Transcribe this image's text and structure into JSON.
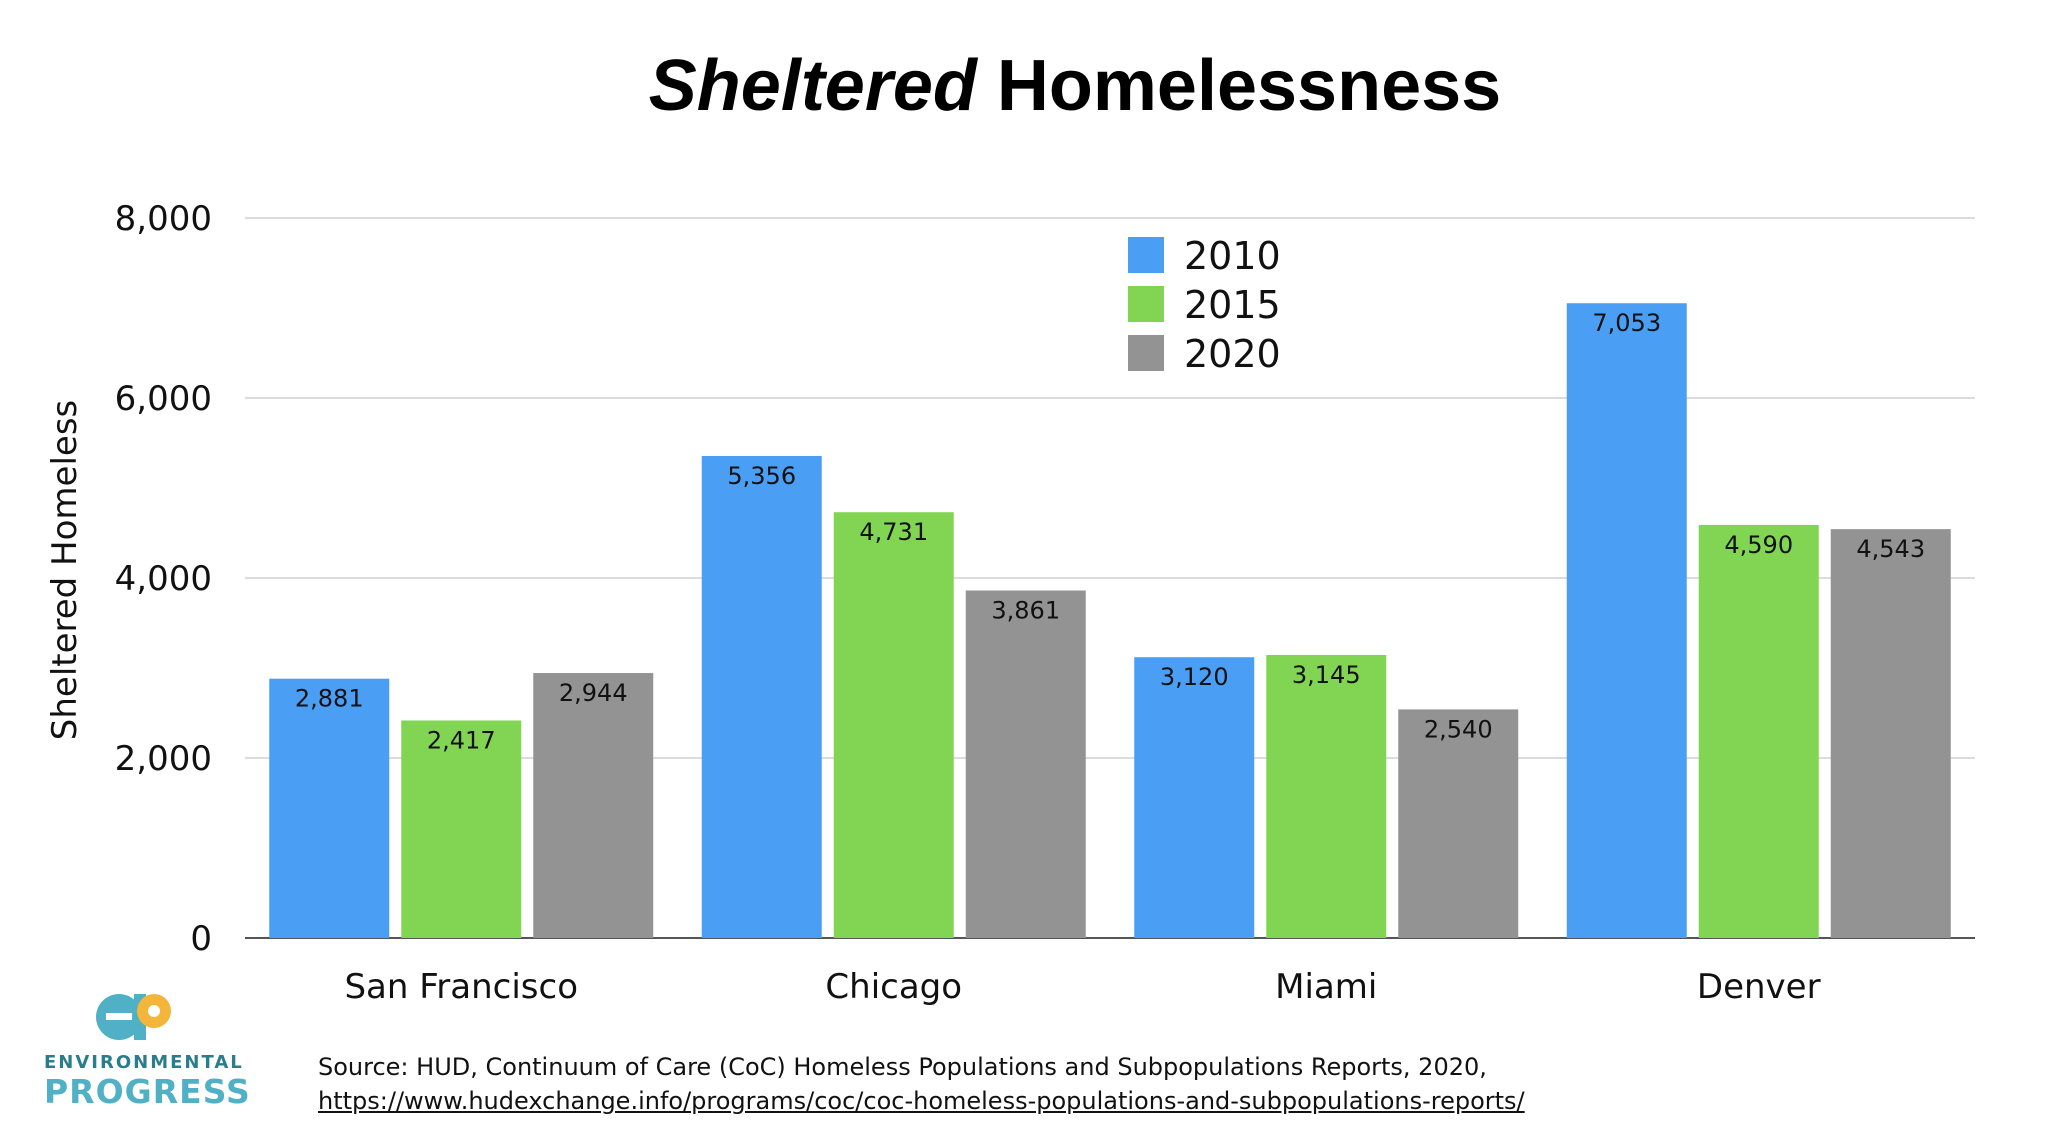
{
  "chart_data": {
    "type": "bar",
    "title": {
      "italic": "Sheltered",
      "rest": " Homelessness"
    },
    "xlabel": "",
    "ylabel": "Sheltered Homeless",
    "ylim": [
      0,
      8000
    ],
    "yticks": [
      0,
      2000,
      4000,
      6000,
      8000
    ],
    "ytick_labels": [
      "0",
      "2,000",
      "4,000",
      "6,000",
      "8,000"
    ],
    "grid": true,
    "legend_position": "top-center",
    "categories": [
      "San Francisco",
      "Chicago",
      "Miami",
      "Denver"
    ],
    "series": [
      {
        "name": "2010",
        "color": "#4a9ff5",
        "values": [
          2881,
          5356,
          3120,
          7053
        ],
        "labels": [
          "2,881",
          "5,356",
          "3,120",
          "7,053"
        ]
      },
      {
        "name": "2015",
        "color": "#82d552",
        "values": [
          2417,
          4731,
          3145,
          4590
        ],
        "labels": [
          "2,417",
          "4,731",
          "3,145",
          "4,590"
        ]
      },
      {
        "name": "2020",
        "color": "#939393",
        "values": [
          2944,
          3861,
          2540,
          4543
        ],
        "labels": [
          "2,944",
          "3,861",
          "2,540",
          "4,543"
        ]
      }
    ]
  },
  "source": {
    "prefix": "Source: HUD, Continuum of Care (CoC) Homeless Populations and Subpopulations Reports, 2020, ",
    "link_text": "https://www.hudexchange.info/programs/coc/coc-homeless-populations-and-subpopulations-reports/"
  },
  "logo": {
    "line1": "ENVIRONMENTAL",
    "line2": "PROGRESS",
    "colors": {
      "dark": "#2a7d8c",
      "light": "#4fb0c6",
      "accent": "#f3b63a"
    }
  }
}
